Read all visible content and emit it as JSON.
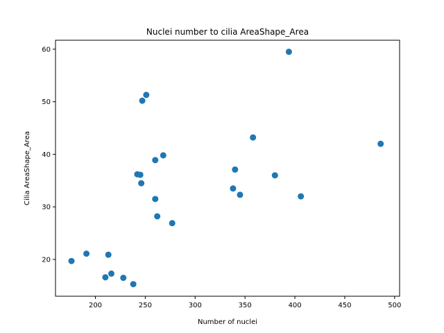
{
  "chart_data": {
    "type": "scatter",
    "title": "Nuclei number to cilia AreaShape_Area",
    "xlabel": "Number of nuclei",
    "ylabel": "Cilia AreaShape_Area",
    "xlim": [
      160,
      505
    ],
    "ylim": [
      13.0,
      61.7
    ],
    "xticks": [
      200,
      250,
      300,
      350,
      400,
      450,
      500
    ],
    "yticks": [
      20,
      30,
      40,
      50,
      60
    ],
    "grid": false,
    "point_color": "#1f77b4",
    "points": [
      {
        "x": 176,
        "y": 19.7
      },
      {
        "x": 191,
        "y": 21.1
      },
      {
        "x": 210,
        "y": 16.6
      },
      {
        "x": 213,
        "y": 20.9
      },
      {
        "x": 216,
        "y": 17.3
      },
      {
        "x": 228,
        "y": 16.5
      },
      {
        "x": 238,
        "y": 15.3
      },
      {
        "x": 242,
        "y": 36.2
      },
      {
        "x": 245,
        "y": 36.1
      },
      {
        "x": 246,
        "y": 34.5
      },
      {
        "x": 247,
        "y": 50.2
      },
      {
        "x": 251,
        "y": 51.3
      },
      {
        "x": 260,
        "y": 31.5
      },
      {
        "x": 260,
        "y": 38.9
      },
      {
        "x": 262,
        "y": 28.2
      },
      {
        "x": 268,
        "y": 39.8
      },
      {
        "x": 277,
        "y": 26.9
      },
      {
        "x": 338,
        "y": 33.5
      },
      {
        "x": 340,
        "y": 37.1
      },
      {
        "x": 345,
        "y": 32.3
      },
      {
        "x": 358,
        "y": 43.2
      },
      {
        "x": 380,
        "y": 36.0
      },
      {
        "x": 394,
        "y": 59.5
      },
      {
        "x": 406,
        "y": 32.0
      },
      {
        "x": 486,
        "y": 42.0
      }
    ]
  }
}
